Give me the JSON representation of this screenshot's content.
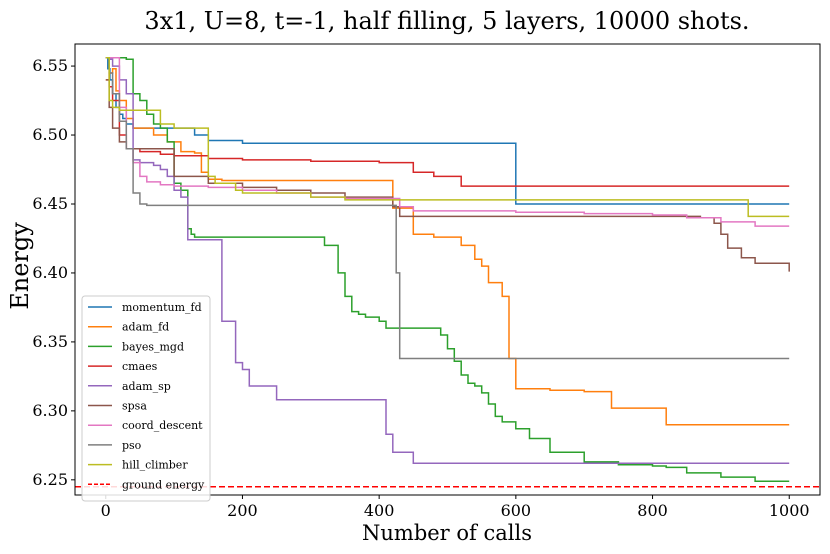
{
  "chart_data": {
    "type": "line",
    "title": "3x1, U=8, t=-1, half filling, 5 layers, 10000 shots.",
    "xlabel": "Number of calls",
    "ylabel": "Energy",
    "xlim": [
      -45,
      1045
    ],
    "ylim": [
      6.239,
      6.566
    ],
    "xticks": [
      0,
      200,
      400,
      600,
      800,
      1000
    ],
    "xtick_labels": [
      "0",
      "200",
      "400",
      "600",
      "800",
      "1000"
    ],
    "yticks": [
      6.25,
      6.3,
      6.35,
      6.4,
      6.45,
      6.5,
      6.55
    ],
    "ytick_labels": [
      "6.25",
      "6.30",
      "6.35",
      "6.40",
      "6.45",
      "6.50",
      "6.55"
    ],
    "grid": false,
    "legend_position": "lower-left",
    "series": [
      {
        "name": "momentum_fd",
        "color": "#1f77b4",
        "x": [
          0,
          3,
          6,
          10,
          15,
          20,
          25,
          30,
          40,
          60,
          80,
          100,
          120,
          130,
          150,
          200,
          250,
          300,
          400,
          500,
          550,
          600,
          600,
          700,
          800,
          900,
          1000
        ],
        "y": [
          6.556,
          6.548,
          6.54,
          6.53,
          6.52,
          6.515,
          6.512,
          6.508,
          6.505,
          6.505,
          6.505,
          6.505,
          6.505,
          6.5,
          6.496,
          6.494,
          6.494,
          6.494,
          6.494,
          6.494,
          6.494,
          6.494,
          6.45,
          6.45,
          6.45,
          6.45,
          6.45
        ]
      },
      {
        "name": "adam_fd",
        "color": "#ff7f0e",
        "x": [
          0,
          5,
          10,
          15,
          20,
          30,
          40,
          50,
          70,
          90,
          110,
          130,
          140,
          150,
          160,
          170,
          180,
          200,
          250,
          300,
          350,
          400,
          420,
          450,
          480,
          520,
          540,
          550,
          560,
          570,
          580,
          590,
          600,
          650,
          700,
          740,
          780,
          820,
          900,
          1000
        ],
        "y": [
          6.54,
          6.545,
          6.548,
          6.532,
          6.525,
          6.512,
          6.505,
          6.505,
          6.5,
          6.495,
          6.488,
          6.487,
          6.473,
          6.468,
          6.468,
          6.467,
          6.467,
          6.467,
          6.467,
          6.467,
          6.467,
          6.467,
          6.447,
          6.428,
          6.426,
          6.42,
          6.41,
          6.405,
          6.393,
          6.393,
          6.383,
          6.338,
          6.316,
          6.315,
          6.314,
          6.302,
          6.302,
          6.29,
          6.29,
          6.29
        ]
      },
      {
        "name": "bayes_mgd",
        "color": "#2ca02c",
        "x": [
          0,
          5,
          10,
          20,
          30,
          40,
          50,
          60,
          70,
          80,
          90,
          100,
          110,
          120,
          125,
          130,
          150,
          200,
          250,
          300,
          320,
          340,
          350,
          360,
          370,
          380,
          390,
          400,
          410,
          420,
          430,
          440,
          450,
          470,
          490,
          500,
          510,
          520,
          530,
          540,
          550,
          560,
          570,
          580,
          600,
          620,
          650,
          700,
          750,
          800,
          820,
          850,
          900,
          950,
          1000
        ],
        "y": [
          6.556,
          6.556,
          6.556,
          6.556,
          6.555,
          6.53,
          6.525,
          6.515,
          6.508,
          6.505,
          6.495,
          6.465,
          6.46,
          6.432,
          6.428,
          6.426,
          6.426,
          6.426,
          6.426,
          6.426,
          6.42,
          6.4,
          6.383,
          6.372,
          6.37,
          6.368,
          6.368,
          6.365,
          6.36,
          6.36,
          6.36,
          6.36,
          6.36,
          6.36,
          6.355,
          6.345,
          6.336,
          6.326,
          6.32,
          6.318,
          6.313,
          6.305,
          6.296,
          6.292,
          6.287,
          6.28,
          6.27,
          6.263,
          6.261,
          6.26,
          6.259,
          6.255,
          6.252,
          6.249,
          6.249
        ]
      },
      {
        "name": "cmaes",
        "color": "#d62728",
        "x": [
          0,
          5,
          10,
          20,
          30,
          50,
          80,
          100,
          150,
          200,
          300,
          400,
          450,
          480,
          520,
          600,
          700,
          800,
          900,
          1000
        ],
        "y": [
          6.556,
          6.535,
          6.525,
          6.5,
          6.49,
          6.488,
          6.486,
          6.485,
          6.483,
          6.482,
          6.481,
          6.48,
          6.473,
          6.47,
          6.463,
          6.463,
          6.463,
          6.463,
          6.463,
          6.463
        ]
      },
      {
        "name": "adam_sp",
        "color": "#9467bd",
        "x": [
          0,
          5,
          10,
          20,
          30,
          40,
          50,
          60,
          70,
          80,
          90,
          100,
          110,
          120,
          130,
          150,
          160,
          170,
          190,
          200,
          210,
          230,
          250,
          260,
          300,
          350,
          400,
          410,
          420,
          450,
          500,
          600,
          700,
          800,
          900,
          1000
        ],
        "y": [
          6.556,
          6.555,
          6.55,
          6.54,
          6.53,
          6.482,
          6.48,
          6.48,
          6.478,
          6.475,
          6.47,
          6.46,
          6.455,
          6.424,
          6.424,
          6.424,
          6.424,
          6.365,
          6.335,
          6.33,
          6.318,
          6.318,
          6.308,
          6.308,
          6.308,
          6.308,
          6.308,
          6.283,
          6.27,
          6.262,
          6.262,
          6.262,
          6.262,
          6.262,
          6.262,
          6.262
        ]
      },
      {
        "name": "spsa",
        "color": "#8c564b",
        "x": [
          0,
          5,
          10,
          20,
          30,
          50,
          100,
          150,
          200,
          250,
          300,
          350,
          400,
          420,
          430,
          500,
          600,
          700,
          800,
          870,
          890,
          900,
          910,
          930,
          950,
          1000
        ],
        "y": [
          6.54,
          6.52,
          6.505,
          6.495,
          6.49,
          6.49,
          6.47,
          6.465,
          6.462,
          6.46,
          6.458,
          6.455,
          6.455,
          6.448,
          6.441,
          6.441,
          6.441,
          6.441,
          6.441,
          6.44,
          6.436,
          6.428,
          6.418,
          6.411,
          6.407,
          6.401
        ]
      },
      {
        "name": "coord_descent",
        "color": "#e377c2",
        "x": [
          0,
          5,
          10,
          20,
          30,
          40,
          50,
          60,
          80,
          100,
          150,
          200,
          250,
          300,
          350,
          400,
          430,
          450,
          500,
          600,
          700,
          800,
          850,
          900,
          950,
          1000
        ],
        "y": [
          6.556,
          6.556,
          6.556,
          6.52,
          6.49,
          6.48,
          6.47,
          6.466,
          6.464,
          6.463,
          6.462,
          6.46,
          6.458,
          6.455,
          6.454,
          6.454,
          6.448,
          6.445,
          6.445,
          6.444,
          6.443,
          6.442,
          6.44,
          6.437,
          6.434,
          6.434
        ]
      },
      {
        "name": "pso",
        "color": "#7f7f7f",
        "x": [
          0,
          5,
          10,
          20,
          30,
          40,
          50,
          60,
          70,
          100,
          200,
          300,
          400,
          420,
          425,
          430,
          500,
          600,
          700,
          800,
          900,
          1000
        ],
        "y": [
          6.556,
          6.545,
          6.53,
          6.51,
          6.49,
          6.458,
          6.45,
          6.449,
          6.449,
          6.449,
          6.449,
          6.449,
          6.449,
          6.449,
          6.4,
          6.338,
          6.338,
          6.338,
          6.338,
          6.338,
          6.338,
          6.338
        ]
      },
      {
        "name": "hill_climber",
        "color": "#bcbd22",
        "x": [
          0,
          5,
          10,
          20,
          40,
          50,
          60,
          80,
          100,
          120,
          140,
          150,
          160,
          170,
          180,
          190,
          200,
          220,
          300,
          350,
          400,
          430,
          500,
          600,
          700,
          800,
          900,
          935,
          940,
          1000
        ],
        "y": [
          6.556,
          6.525,
          6.52,
          6.518,
          6.518,
          6.518,
          6.518,
          6.508,
          6.505,
          6.505,
          6.505,
          6.47,
          6.465,
          6.465,
          6.465,
          6.46,
          6.458,
          6.458,
          6.455,
          6.453,
          6.453,
          6.453,
          6.453,
          6.453,
          6.453,
          6.453,
          6.453,
          6.453,
          6.441,
          6.441
        ]
      }
    ],
    "reference_line": {
      "name": "ground energy",
      "value": 6.245,
      "color": "#ff0000",
      "style": "dashed"
    }
  }
}
